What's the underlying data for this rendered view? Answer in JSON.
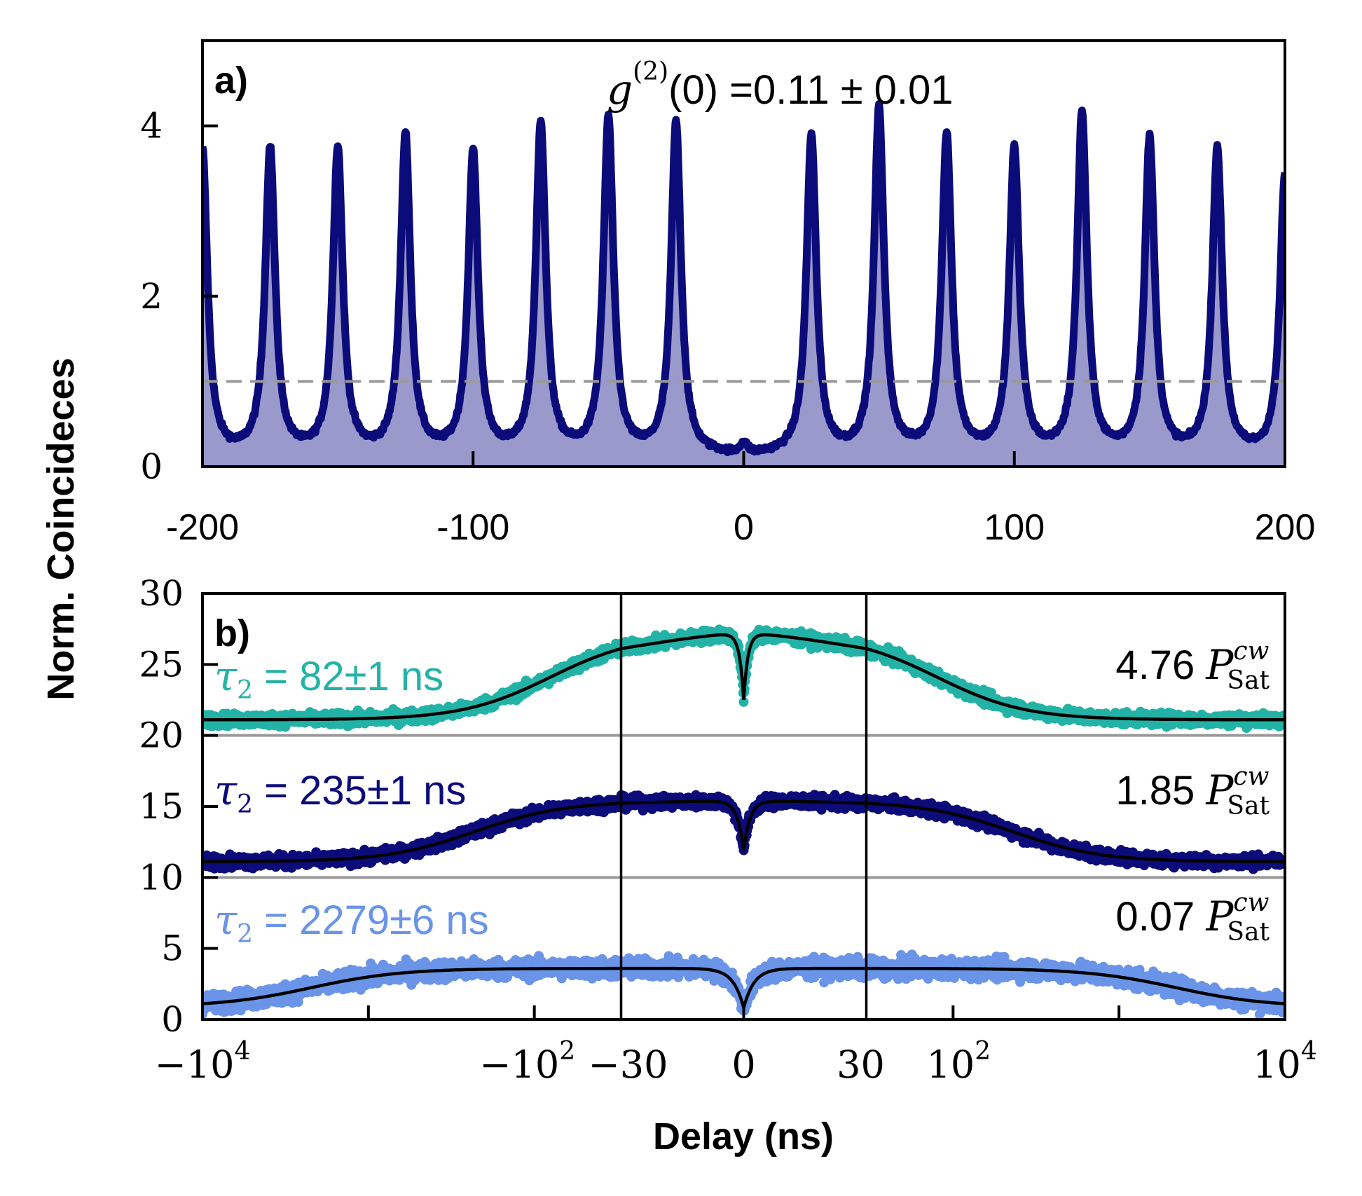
{
  "figure": {
    "ylabel": "Norm. Coincideces",
    "xlabel": "Delay (ns)"
  },
  "colors": {
    "navy": "#0b0b7a",
    "navy_fill": "#9999cc",
    "teal": "#22b3a6",
    "cornflower": "#6a94e8",
    "fit": "#000000",
    "guide": "#999999"
  },
  "chart_data": [
    {
      "type": "line",
      "panel_label": "a)",
      "annotation": {
        "symbol": "g",
        "sup": "(2)",
        "arg": "(0)",
        "value_text": " =0.11 ± 0.01"
      },
      "xlim": [
        -200,
        200
      ],
      "ylim": [
        0,
        5
      ],
      "xticks": [
        -200,
        -100,
        0,
        100,
        200
      ],
      "xtick_labels": [
        "-200",
        "-100",
        "0",
        "100",
        "200"
      ],
      "yticks": [
        0,
        2,
        4
      ],
      "ytick_labels": [
        "0",
        "2",
        "4"
      ],
      "reference_line": 1.0,
      "peak_period_ns": 25,
      "peak_width_ns": 2.2,
      "baseline": 0.1,
      "zero_delay_peak": 0.2,
      "peaks": [
        {
          "x": -200,
          "y": 3.7
        },
        {
          "x": -175,
          "y": 3.7
        },
        {
          "x": -150,
          "y": 3.7
        },
        {
          "x": -125,
          "y": 3.85
        },
        {
          "x": -100,
          "y": 3.65
        },
        {
          "x": -75,
          "y": 4.0
        },
        {
          "x": -50,
          "y": 4.05
        },
        {
          "x": -25,
          "y": 4.0
        },
        {
          "x": 25,
          "y": 3.85
        },
        {
          "x": 50,
          "y": 4.15
        },
        {
          "x": 75,
          "y": 3.85
        },
        {
          "x": 100,
          "y": 3.7
        },
        {
          "x": 125,
          "y": 4.1
        },
        {
          "x": 150,
          "y": 3.8
        },
        {
          "x": 175,
          "y": 3.7
        },
        {
          "x": 200,
          "y": 3.4
        }
      ]
    },
    {
      "type": "scatter",
      "panel_label": "b)",
      "xscale": "symlog",
      "linear_threshold_ns": 30,
      "xlim": [
        -10000,
        10000
      ],
      "ylim": [
        0,
        30
      ],
      "xtick_labels": [
        {
          "base": "−10",
          "exp": "4"
        },
        {
          "base": "−10",
          "exp": "2"
        },
        {
          "base": "−30",
          "exp": ""
        },
        {
          "base": "0",
          "exp": ""
        },
        {
          "base": "30",
          "exp": ""
        },
        {
          "base": "10",
          "exp": "2"
        },
        {
          "base": "10",
          "exp": "4"
        }
      ],
      "yticks": [
        0,
        5,
        10,
        15,
        20,
        25,
        30
      ],
      "ytick_labels": [
        "0",
        "5",
        "10",
        "15",
        "20",
        "25",
        "30"
      ],
      "vertical_lines": [
        -30,
        30
      ],
      "horizontal_lines": [
        10,
        20
      ],
      "series": [
        {
          "name": "τ2 = 82±1 ns",
          "label_symbol": "τ",
          "label_sub": "2",
          "label_text": " = 82±1 ns",
          "power_value": "4.76",
          "power_symbol": "P",
          "power_sup": "cw",
          "power_sub": "Sat",
          "color_key": "teal",
          "offset": 20,
          "baseline": 1.1,
          "plateau": 7.2,
          "tau2_ns": 82,
          "dip_min": 2.5,
          "dip_width_ns": 1.0,
          "noise": 0.35
        },
        {
          "name": "τ2 = 235±1 ns",
          "label_symbol": "τ",
          "label_sub": "2",
          "label_text": " = 235±1 ns",
          "power_value": "1.85",
          "power_symbol": "P",
          "power_sup": "cw",
          "power_sub": "Sat",
          "color_key": "navy",
          "offset": 10,
          "baseline": 1.1,
          "plateau": 5.4,
          "tau2_ns": 235,
          "dip_min": 1.9,
          "dip_width_ns": 1.5,
          "noise": 0.35
        },
        {
          "name": "τ2 = 2279±6 ns",
          "label_symbol": "τ",
          "label_sub": "2",
          "label_text": " = 2279±6 ns",
          "power_value": "0.07",
          "power_symbol": "P",
          "power_sup": "cw",
          "power_sub": "Sat",
          "color_key": "cornflower",
          "offset": 0,
          "baseline": 0.9,
          "plateau": 3.6,
          "tau2_ns": 2279,
          "dip_min": 0.8,
          "dip_width_ns": 2.5,
          "noise": 0.55
        }
      ]
    }
  ]
}
